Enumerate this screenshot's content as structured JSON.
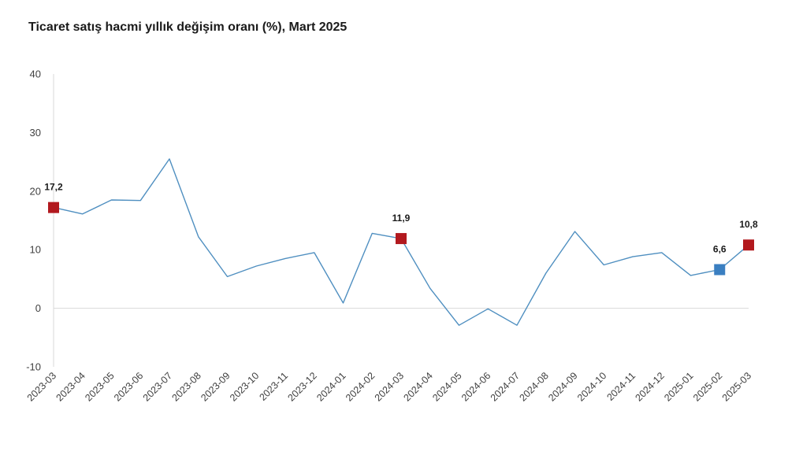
{
  "title": "Ticaret satış hacmi yıllık değişim oranı (%), Mart 2025",
  "chart_data": {
    "type": "line",
    "title": "Ticaret satış hacmi yıllık değişim oranı (%), Mart 2025",
    "xlabel": "",
    "ylabel": "",
    "ylim": [
      -10,
      40
    ],
    "yticks": [
      -10,
      0,
      10,
      20,
      30,
      40
    ],
    "grid": false,
    "line_color": "#4f8fc0",
    "categories": [
      "2023-03",
      "2023-04",
      "2023-05",
      "2023-06",
      "2023-07",
      "2023-08",
      "2023-09",
      "2023-10",
      "2023-11",
      "2023-12",
      "2024-01",
      "2024-02",
      "2024-03",
      "2024-04",
      "2024-05",
      "2024-06",
      "2024-07",
      "2024-08",
      "2024-09",
      "2024-10",
      "2024-11",
      "2024-12",
      "2025-01",
      "2025-02",
      "2025-03"
    ],
    "series": [
      {
        "values": [
          17.2,
          16.1,
          18.5,
          18.4,
          25.5,
          12.2,
          5.4,
          7.2,
          8.5,
          9.5,
          0.9,
          12.8,
          11.9,
          3.4,
          -2.9,
          -0.1,
          -2.9,
          6.0,
          13.1,
          7.4,
          8.8,
          9.5,
          5.6,
          6.6,
          10.8
        ]
      }
    ],
    "highlights": [
      {
        "index": 0,
        "label": "17,2",
        "color": "#b2191e"
      },
      {
        "index": 12,
        "label": "11,9",
        "color": "#b2191e"
      },
      {
        "index": 23,
        "label": "6,6",
        "color": "#3a7fc1"
      },
      {
        "index": 24,
        "label": "10,8",
        "color": "#b2191e"
      }
    ]
  }
}
